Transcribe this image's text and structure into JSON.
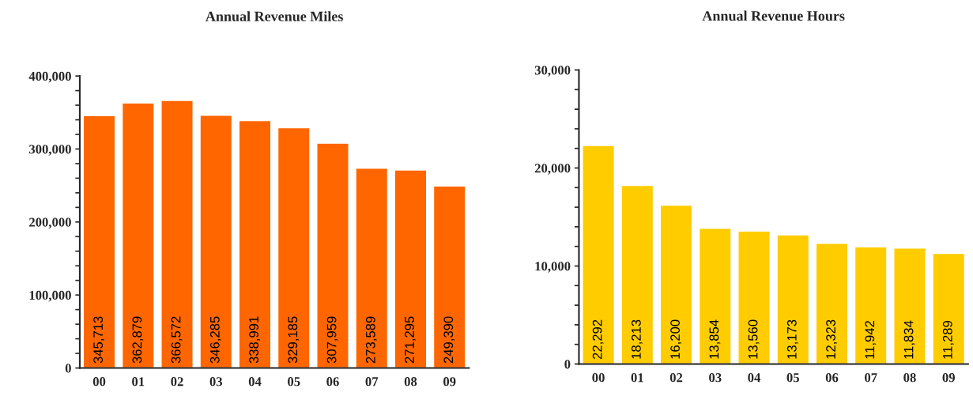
{
  "chart_data": [
    {
      "type": "bar",
      "title": "Annual Revenue Miles",
      "categories": [
        "00",
        "01",
        "02",
        "03",
        "04",
        "05",
        "06",
        "07",
        "08",
        "09"
      ],
      "series": [
        {
          "color": "#ff6600",
          "values": [
            345713,
            362879,
            366572,
            346285,
            338991,
            329185,
            307959,
            273589,
            271295,
            249390
          ],
          "value_labels": [
            "345,713",
            "362,879",
            "366,572",
            "346,285",
            "338,991",
            "329,185",
            "307,959",
            "273,589",
            "271,295",
            "249,390"
          ]
        }
      ],
      "ylim": [
        0,
        400000
      ],
      "yticks": [
        {
          "value": 0,
          "label": "0"
        },
        {
          "value": 20000,
          "label": null
        },
        {
          "value": 40000,
          "label": null
        },
        {
          "value": 60000,
          "label": null
        },
        {
          "value": 80000,
          "label": null
        },
        {
          "value": 100000,
          "label": "100,000"
        },
        {
          "value": 120000,
          "label": null
        },
        {
          "value": 140000,
          "label": null
        },
        {
          "value": 160000,
          "label": null
        },
        {
          "value": 180000,
          "label": null
        },
        {
          "value": 200000,
          "label": "200,000"
        },
        {
          "value": 220000,
          "label": null
        },
        {
          "value": 240000,
          "label": null
        },
        {
          "value": 260000,
          "label": null
        },
        {
          "value": 280000,
          "label": null
        },
        {
          "value": 300000,
          "label": "300,000"
        },
        {
          "value": 320000,
          "label": null
        },
        {
          "value": 340000,
          "label": null
        },
        {
          "value": 360000,
          "label": null
        },
        {
          "value": 380000,
          "label": null
        },
        {
          "value": 400000,
          "label": "400,000"
        }
      ],
      "grid": false,
      "legend": false
    },
    {
      "type": "bar",
      "title": "Annual Revenue Hours",
      "categories": [
        "00",
        "01",
        "02",
        "03",
        "04",
        "05",
        "06",
        "07",
        "08",
        "09"
      ],
      "series": [
        {
          "color": "#ffcc00",
          "values": [
            22292,
            18213,
            16200,
            13854,
            13560,
            13173,
            12323,
            11942,
            11834,
            11289
          ],
          "value_labels": [
            "22,292",
            "18,213",
            "16,200",
            "13,854",
            "13,560",
            "13,173",
            "12,323",
            "11,942",
            "11,834",
            "11,289"
          ]
        }
      ],
      "ylim": [
        0,
        30000
      ],
      "yticks": [
        {
          "value": 0,
          "label": "0"
        },
        {
          "value": 2000,
          "label": null
        },
        {
          "value": 4000,
          "label": null
        },
        {
          "value": 6000,
          "label": null
        },
        {
          "value": 8000,
          "label": null
        },
        {
          "value": 10000,
          "label": "10,000"
        },
        {
          "value": 12000,
          "label": null
        },
        {
          "value": 14000,
          "label": null
        },
        {
          "value": 16000,
          "label": null
        },
        {
          "value": 18000,
          "label": null
        },
        {
          "value": 20000,
          "label": "20,000"
        },
        {
          "value": 22000,
          "label": null
        },
        {
          "value": 24000,
          "label": null
        },
        {
          "value": 26000,
          "label": null
        },
        {
          "value": 28000,
          "label": null
        },
        {
          "value": 30000,
          "label": "30,000"
        }
      ],
      "grid": false,
      "legend": false
    }
  ]
}
